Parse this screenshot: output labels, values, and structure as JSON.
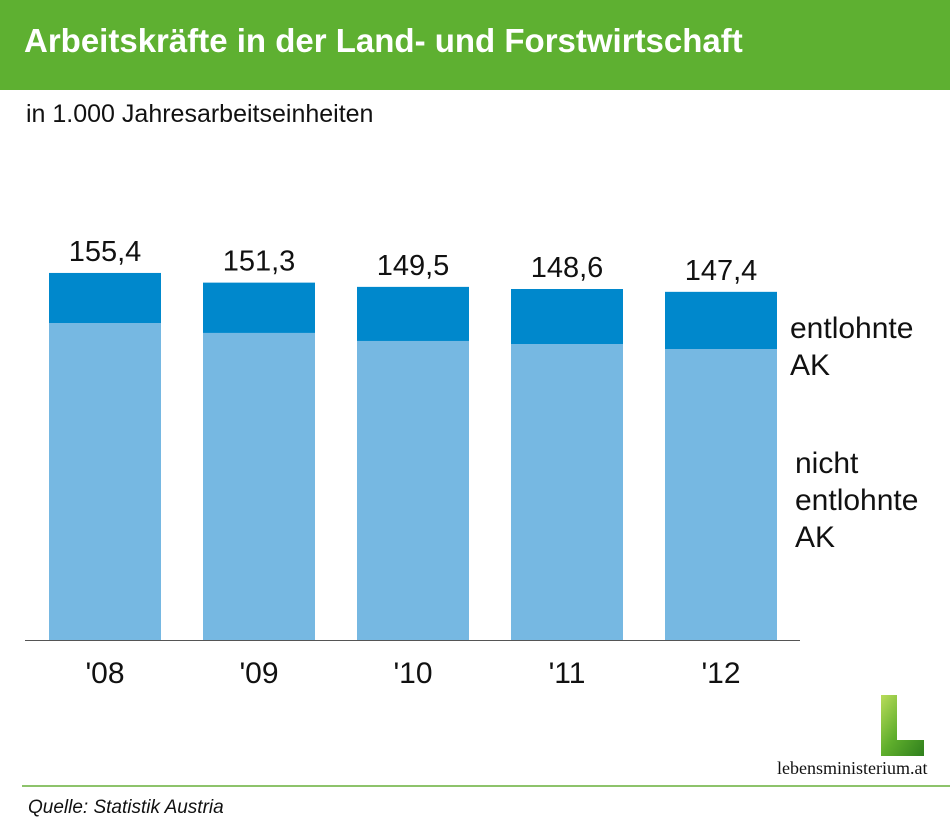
{
  "chart_data": {
    "type": "bar",
    "stacked": true,
    "title": "Arbeitskräfte in der Land- und Forstwirtschaft",
    "subtitle": "in 1.000 Jahresarbeitseinheiten",
    "categories": [
      "'08",
      "'09",
      "'10",
      "'11",
      "'12"
    ],
    "totals": [
      "155,4",
      "151,3",
      "149,5",
      "148,6",
      "147,4"
    ],
    "series": [
      {
        "name": "nicht entlohnte AK",
        "label_lines": [
          "nicht",
          "entlohnte",
          "AK"
        ],
        "color": "#76b8e2",
        "values": [
          134.2,
          130.0,
          126.6,
          125.3,
          123.2
        ]
      },
      {
        "name": "entlohnte AK",
        "label_lines": [
          "entlohnte",
          "AK"
        ],
        "color": "#0088cc",
        "values": [
          21.2,
          21.3,
          22.9,
          23.3,
          24.2
        ]
      }
    ],
    "ylim": [
      0,
      160
    ],
    "grid": false
  },
  "source": "Quelle: Statistik Austria",
  "logo_text": "lebensministerium.at",
  "header_color": "#5eb031"
}
